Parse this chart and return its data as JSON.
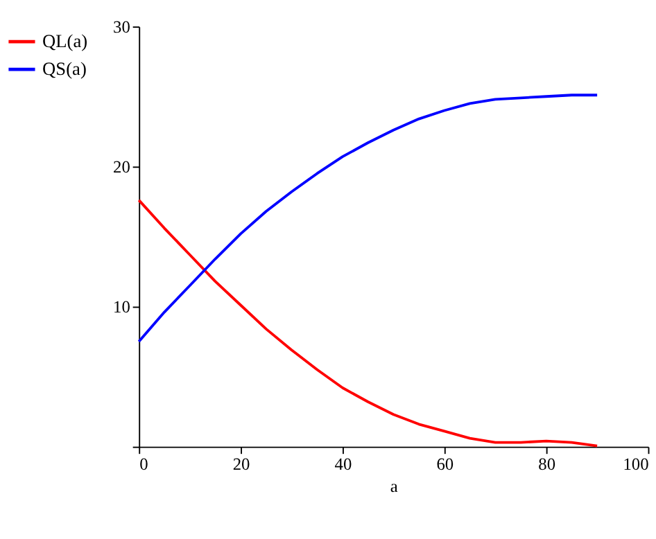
{
  "chart_data": {
    "type": "line",
    "xlabel": "a",
    "x": [
      0,
      5,
      10,
      15,
      20,
      25,
      30,
      35,
      40,
      45,
      50,
      55,
      60,
      65,
      70,
      75,
      80,
      85,
      90
    ],
    "series": [
      {
        "name": "QL(a)",
        "color": "#ff0000",
        "values": [
          17.6,
          15.6,
          13.7,
          11.8,
          10.1,
          8.4,
          6.9,
          5.5,
          4.2,
          3.2,
          2.3,
          1.6,
          1.1,
          0.6,
          0.3,
          0.3,
          0.4,
          0.3,
          0.05
        ]
      },
      {
        "name": "QS(a)",
        "color": "#0000ff",
        "values": [
          7.5,
          9.6,
          11.5,
          13.4,
          15.2,
          16.8,
          18.2,
          19.5,
          20.7,
          21.7,
          22.6,
          23.4,
          24.0,
          24.5,
          24.8,
          24.9,
          25.0,
          25.1,
          25.1
        ]
      }
    ],
    "xlim": [
      0,
      100
    ],
    "xticks": [
      0,
      20,
      40,
      60,
      80,
      100
    ],
    "ylim": [
      0,
      30
    ],
    "yticks": [
      {
        "value": 0,
        "label": null
      },
      10,
      20,
      30
    ],
    "grid": false,
    "legend": "left",
    "line_style": "solid",
    "marker": "none"
  }
}
